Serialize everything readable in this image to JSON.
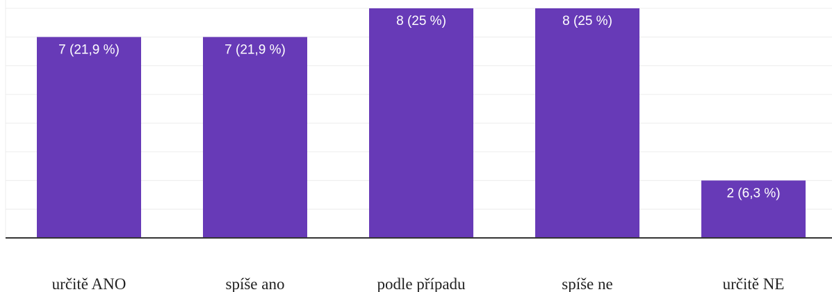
{
  "chart_data": {
    "type": "bar",
    "categories": [
      "určitě ANO",
      "spíše ano",
      "podle případu",
      "spíše ne",
      "určitě NE"
    ],
    "values": [
      7,
      7,
      8,
      8,
      2
    ],
    "data_labels": [
      "7 (21,9 %)",
      "7 (21,9 %)",
      "8 (25 %)",
      "8 (25 %)",
      "2 (6,3 %)"
    ],
    "ylim": [
      0,
      8.2
    ],
    "grid": true,
    "bar_color": "#673ab7",
    "grid_color": "#ececec",
    "axis_color": "#333333"
  }
}
